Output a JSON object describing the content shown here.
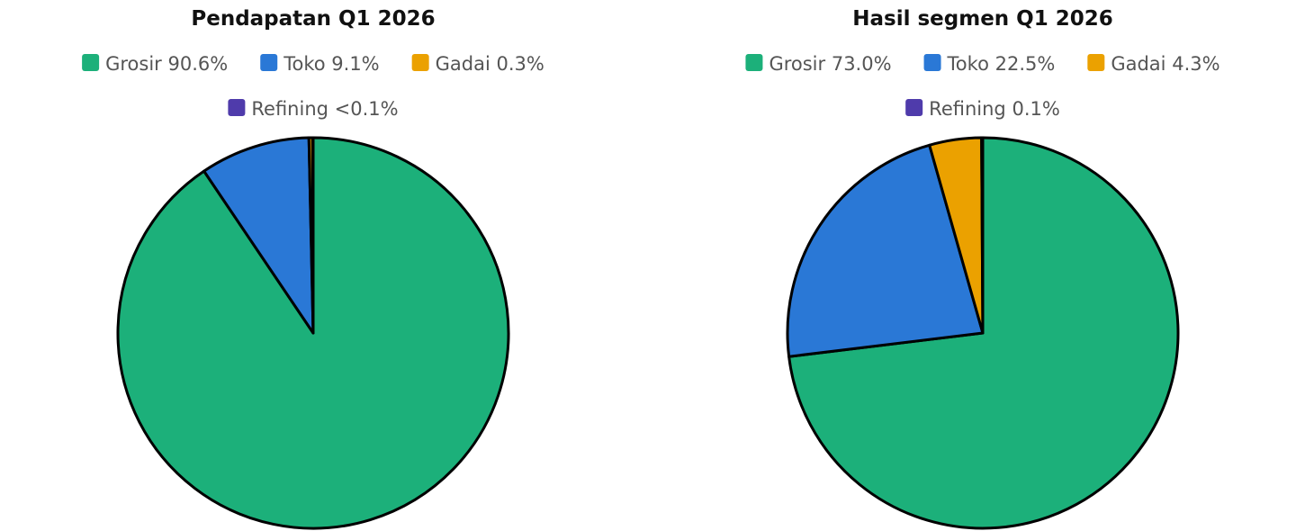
{
  "chart_data": [
    {
      "type": "pie",
      "title": "Pendapatan Q1 2026",
      "categories": [
        "Grosir",
        "Toko",
        "Gadai",
        "Refining"
      ],
      "values": [
        90.6,
        9.1,
        0.3,
        0.05
      ],
      "value_labels": [
        "90.6%",
        "9.1%",
        "0.3%",
        "<0.1%"
      ],
      "colors": [
        "#1cb07a",
        "#2a78d6",
        "#eba100",
        "#4f3bab"
      ]
    },
    {
      "type": "pie",
      "title": "Hasil segmen Q1 2026",
      "categories": [
        "Grosir",
        "Toko",
        "Gadai",
        "Refining"
      ],
      "values": [
        73.0,
        22.5,
        4.3,
        0.1
      ],
      "value_labels": [
        "73.0%",
        "22.5%",
        "4.3%",
        "0.1%"
      ],
      "colors": [
        "#1cb07a",
        "#2a78d6",
        "#eba100",
        "#4f3bab"
      ]
    }
  ]
}
